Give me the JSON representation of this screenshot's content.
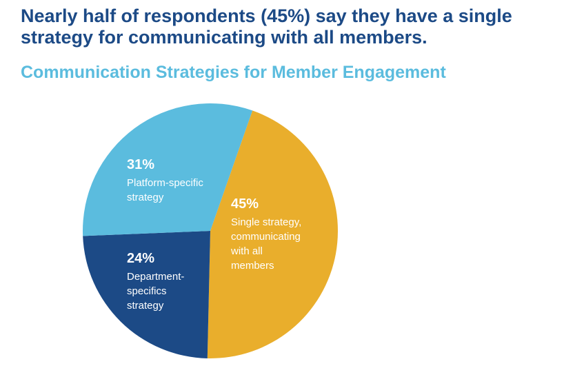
{
  "headline": "Nearly half of respondents (45%) say they have a single strategy for communicating with all members.",
  "chart_data": {
    "type": "pie",
    "title": "Communication Strategies for Member Engagement",
    "slices": [
      {
        "key": "single",
        "value": 45,
        "percent_label": "45%",
        "label_lines": [
          "Single strategy,",
          "communicating",
          "with all",
          "members"
        ],
        "color": "#e9ae2c"
      },
      {
        "key": "department",
        "value": 24,
        "percent_label": "24%",
        "label_lines": [
          "Department-",
          "specifics",
          "strategy"
        ],
        "color": "#1c4a86"
      },
      {
        "key": "platform",
        "value": 31,
        "percent_label": "31%",
        "label_lines": [
          "Platform-specific",
          "strategy"
        ],
        "color": "#5bbcde"
      }
    ],
    "start_angle_deg": 19.3,
    "direction": "clockwise",
    "headline_color": "#1c4a86",
    "title_color": "#5bbcde"
  }
}
